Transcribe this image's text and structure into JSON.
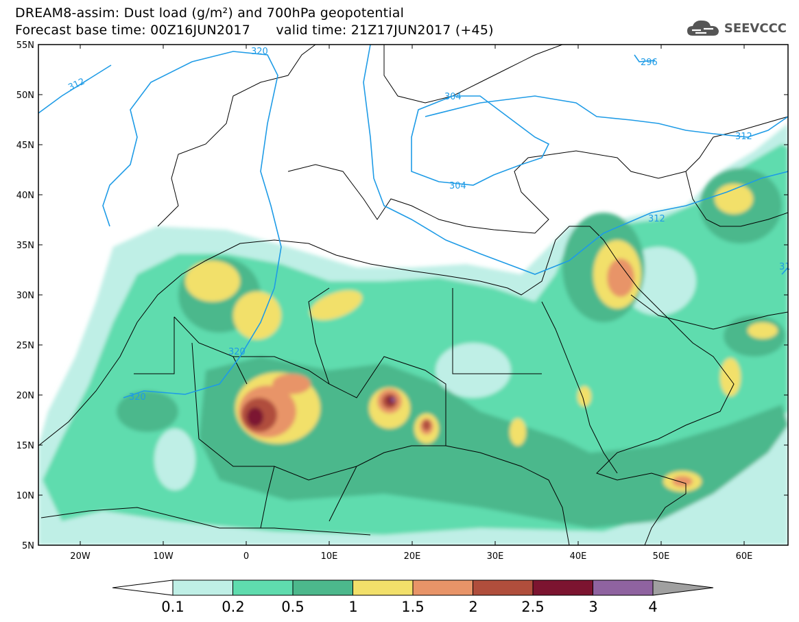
{
  "header": {
    "line1": "DREAM8-assim: Dust load (g/m²) and 700hPa geopotential",
    "line2_left": "Forecast base time: 00Z16JUN2017",
    "line2_right": "valid time: 21Z17JUN2017 (+45)",
    "logo_text": "SEEVCCC"
  },
  "map": {
    "lat_labels": [
      "55N",
      "50N",
      "45N",
      "40N",
      "35N",
      "30N",
      "25N",
      "20N",
      "15N",
      "10N",
      "5N"
    ],
    "lon_labels": [
      "20W",
      "10W",
      "0",
      "10E",
      "20E",
      "30E",
      "40E",
      "50E",
      "60E"
    ],
    "contour_labels": [
      "312",
      "320",
      "304",
      "296",
      "320",
      "320",
      "304",
      "312",
      "312",
      "312",
      "31"
    ]
  },
  "colorbar": {
    "ticks": [
      "0.1",
      "0.2",
      "0.5",
      "1",
      "1.5",
      "2",
      "2.5",
      "3",
      "4"
    ],
    "colors": [
      "#bfefe6",
      "#5fdcae",
      "#4cb88c",
      "#f2e06a",
      "#e89468",
      "#b04e3c",
      "#7c1430",
      "#8f63a0",
      "#a0a0a0"
    ]
  }
}
